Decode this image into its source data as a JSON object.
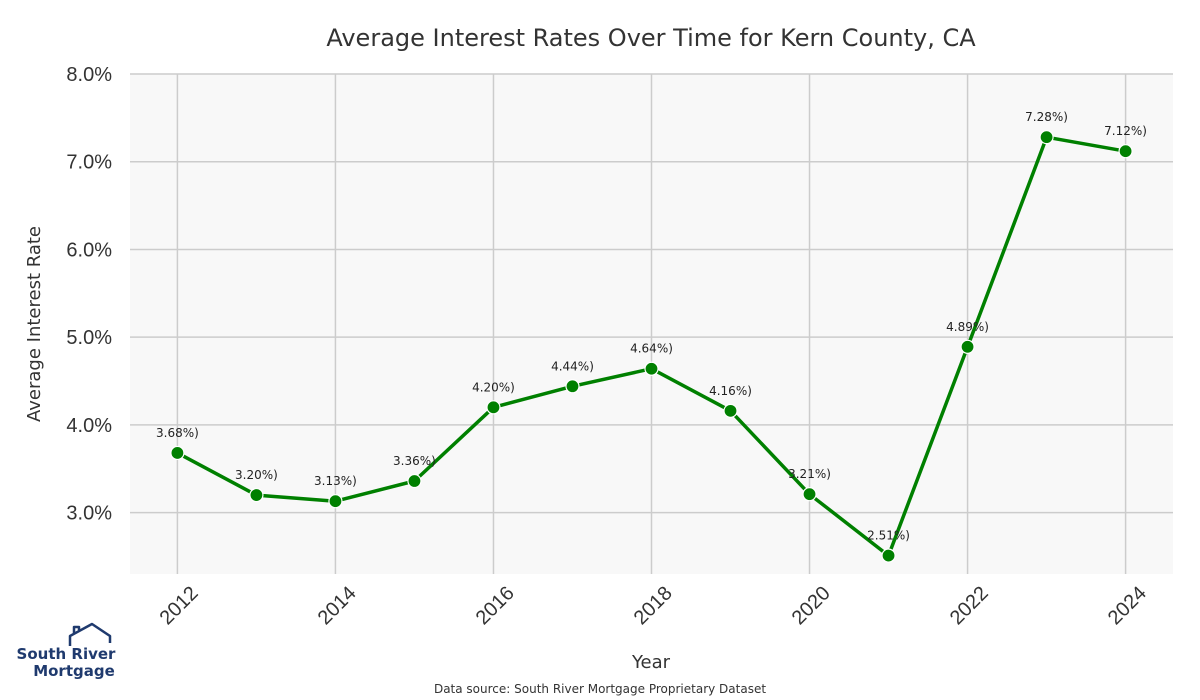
{
  "chart_data": {
    "type": "line",
    "title": "Average Interest Rates Over Time for Kern County, CA",
    "xlabel": "Year",
    "ylabel": "Average Interest Rate",
    "x": [
      2012,
      2013,
      2014,
      2015,
      2016,
      2017,
      2018,
      2019,
      2020,
      2021,
      2022,
      2023,
      2024
    ],
    "series": [
      {
        "values": [
          3.68,
          3.2,
          3.13,
          3.36,
          4.2,
          4.44,
          4.64,
          4.16,
          3.21,
          2.51,
          4.89,
          7.28,
          7.12
        ],
        "point_labels": [
          "3.68%)",
          "3.20%)",
          "3.13%)",
          "3.36%)",
          "4.20%)",
          "4.44%)",
          "4.64%)",
          "4.16%)",
          "3.21%)",
          "2.51%)",
          "4.89%)",
          "7.28%)",
          "7.12%)"
        ],
        "color": "#008000"
      }
    ],
    "x_ticks": [
      2012,
      2014,
      2016,
      2018,
      2020,
      2022,
      2024
    ],
    "x_tick_labels": [
      "2012",
      "2014",
      "2016",
      "2018",
      "2020",
      "2022",
      "2024"
    ],
    "y_ticks": [
      3.0,
      4.0,
      5.0,
      6.0,
      7.0,
      8.0
    ],
    "y_tick_labels": [
      "3.0%",
      "4.0%",
      "5.0%",
      "6.0%",
      "7.0%",
      "8.0%"
    ],
    "xlim": [
      2011.4,
      2024.6
    ],
    "ylim": [
      2.3,
      8.0
    ],
    "grid": true,
    "legend": "none",
    "plot_background": "#f8f8f8",
    "grid_color": "#cccccc"
  },
  "source_note": "Data source: South River Mortgage Proprietary Dataset",
  "logo": {
    "line1": "South River",
    "line2": "Mortgage",
    "icon": "house-roof-icon",
    "color": "#1f3a6e"
  }
}
